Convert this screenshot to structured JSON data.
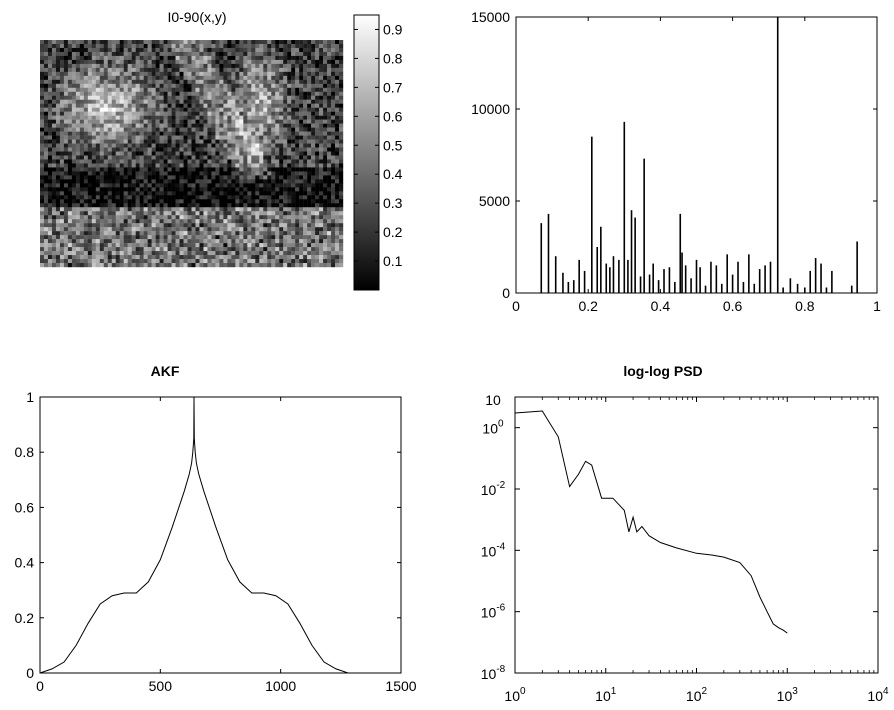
{
  "chart_data": [
    {
      "type": "heatmap",
      "title": "I0-90(x,y)",
      "colormap": "gray",
      "colorbar_range": [
        0.0,
        0.95
      ],
      "colorbar_ticks": [
        "0.1",
        "0.2",
        "0.3",
        "0.4",
        "0.5",
        "0.6",
        "0.7",
        "0.8",
        "0.9"
      ],
      "colorbar_tick_values": [
        0.1,
        0.2,
        0.3,
        0.4,
        0.5,
        0.6,
        0.7,
        0.8,
        0.9
      ]
    },
    {
      "type": "bar",
      "title": "",
      "xlabel": "",
      "ylabel": "",
      "xlim": [
        0,
        1
      ],
      "ylim": [
        0,
        15000
      ],
      "xticks": [
        "0",
        "0.2",
        "0.4",
        "0.6",
        "0.8",
        "1"
      ],
      "xtick_values": [
        0,
        0.2,
        0.4,
        0.6,
        0.8,
        1
      ],
      "yticks": [
        "0",
        "5000",
        "10000",
        "15000"
      ],
      "ytick_values": [
        0,
        5000,
        10000,
        15000
      ],
      "x": [
        0.07,
        0.09,
        0.11,
        0.13,
        0.145,
        0.16,
        0.175,
        0.19,
        0.21,
        0.225,
        0.235,
        0.25,
        0.26,
        0.27,
        0.285,
        0.3,
        0.31,
        0.32,
        0.33,
        0.345,
        0.355,
        0.37,
        0.38,
        0.395,
        0.41,
        0.425,
        0.44,
        0.455,
        0.46,
        0.47,
        0.485,
        0.5,
        0.51,
        0.525,
        0.54,
        0.555,
        0.57,
        0.585,
        0.6,
        0.615,
        0.63,
        0.645,
        0.66,
        0.675,
        0.69,
        0.705,
        0.725,
        0.74,
        0.76,
        0.78,
        0.8,
        0.815,
        0.83,
        0.845,
        0.86,
        0.875,
        0.93,
        0.945
      ],
      "values": [
        3800,
        4300,
        2000,
        1100,
        600,
        700,
        1800,
        1200,
        8500,
        2500,
        3600,
        1600,
        1400,
        2000,
        1800,
        9300,
        1800,
        4500,
        4100,
        900,
        7300,
        1000,
        1600,
        700,
        1300,
        1400,
        600,
        4300,
        2200,
        1500,
        800,
        1800,
        1400,
        400,
        1700,
        1500,
        500,
        2100,
        1000,
        1700,
        600,
        2100,
        500,
        1300,
        1500,
        1700,
        15000,
        300,
        800,
        500,
        300,
        1200,
        1900,
        1600,
        300,
        1200,
        400,
        2800
      ]
    },
    {
      "type": "line",
      "title": "AKF",
      "xlabel": "",
      "ylabel": "",
      "xlim": [
        0,
        1500
      ],
      "ylim": [
        0,
        1
      ],
      "xticks": [
        "0",
        "500",
        "1000",
        "1500"
      ],
      "xtick_values": [
        0,
        500,
        1000,
        1500
      ],
      "yticks": [
        "0",
        "0.2",
        "0.4",
        "0.6",
        "0.8",
        "1"
      ],
      "ytick_values": [
        0,
        0.2,
        0.4,
        0.6,
        0.8,
        1
      ],
      "x": [
        0,
        50,
        100,
        150,
        200,
        250,
        300,
        350,
        400,
        450,
        500,
        550,
        600,
        620,
        630,
        635,
        639,
        640,
        641,
        645,
        650,
        660,
        680,
        730,
        780,
        830,
        880,
        930,
        980,
        1030,
        1080,
        1130,
        1180,
        1230,
        1280
      ],
      "values": [
        0,
        0.015,
        0.04,
        0.1,
        0.18,
        0.25,
        0.28,
        0.29,
        0.29,
        0.33,
        0.41,
        0.53,
        0.66,
        0.72,
        0.76,
        0.8,
        0.85,
        1.0,
        0.85,
        0.8,
        0.76,
        0.72,
        0.66,
        0.53,
        0.41,
        0.33,
        0.29,
        0.29,
        0.28,
        0.25,
        0.18,
        0.1,
        0.04,
        0.015,
        0
      ]
    },
    {
      "type": "line",
      "title": "log-log PSD",
      "xlabel": "",
      "ylabel": "",
      "xscale": "log",
      "yscale": "log",
      "xlim": [
        1,
        10000
      ],
      "ylim": [
        1e-08,
        10
      ],
      "xticks": [
        {
          "base": "10",
          "exp": "0"
        },
        {
          "base": "10",
          "exp": "1"
        },
        {
          "base": "10",
          "exp": "2"
        },
        {
          "base": "10",
          "exp": "3"
        },
        {
          "base": "10",
          "exp": "4"
        }
      ],
      "xtick_values": [
        1,
        10,
        100,
        1000,
        10000
      ],
      "yticks": [
        {
          "base": "10",
          "exp": "-8"
        },
        {
          "base": "10",
          "exp": "-6"
        },
        {
          "base": "10",
          "exp": "-4"
        },
        {
          "base": "10",
          "exp": "-2"
        },
        {
          "base": "10",
          "exp": "0"
        },
        {
          "base": "10",
          "exp": ""
        }
      ],
      "ytick_values": [
        1e-08,
        1e-06,
        0.0001,
        0.01,
        1,
        10
      ],
      "x": [
        1,
        1.3,
        2,
        3,
        4,
        5,
        6,
        7,
        9,
        12,
        16,
        18,
        20,
        22,
        25,
        30,
        40,
        60,
        100,
        150,
        200,
        300,
        400,
        500,
        600,
        700,
        800,
        900,
        1000
      ],
      "values": [
        3.0,
        3.2,
        3.5,
        0.5,
        0.012,
        0.03,
        0.08,
        0.06,
        0.005,
        0.005,
        0.002,
        0.0004,
        0.0012,
        0.0004,
        0.0006,
        0.0003,
        0.00018,
        0.00012,
        8e-05,
        7e-05,
        6e-05,
        4e-05,
        1.5e-05,
        3e-06,
        1e-06,
        4e-07,
        3e-07,
        2.5e-07,
        2e-07
      ]
    }
  ]
}
